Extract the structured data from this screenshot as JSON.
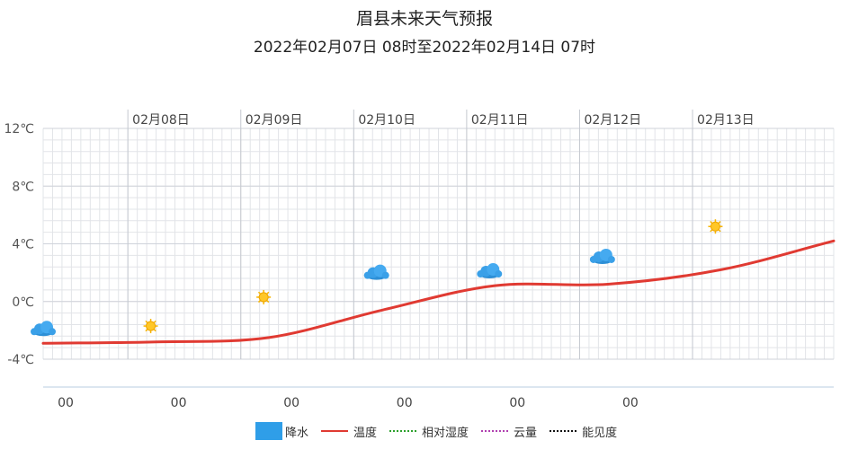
{
  "title": "眉县未来天气预报",
  "subtitle": "2022年02月07日 08时至2022年02月14日 07时",
  "chart_data": {
    "type": "line",
    "ylim": [
      -4,
      12
    ],
    "y_ticks": [
      "12℃",
      "8℃",
      "4℃",
      "0℃",
      "-4℃"
    ],
    "date_labels": [
      "02月08日",
      "02月09日",
      "02月10日",
      "02月11日",
      "02月12日",
      "02月13日"
    ],
    "hour_labels": [
      "00",
      "00",
      "00",
      "00",
      "00",
      "00"
    ],
    "grid": true,
    "series": [
      {
        "name": "温度",
        "color": "#e03a32",
        "x_hours": [
          0,
          24,
          48,
          72,
          96,
          120,
          144,
          168
        ],
        "values": [
          -2.9,
          -2.8,
          -2.5,
          -0.6,
          1.1,
          1.2,
          2.2,
          4.2
        ]
      }
    ],
    "weather_icons": [
      {
        "hour": 0,
        "icon": "rain-cloud-icon",
        "value": -1.9
      },
      {
        "hour": 24,
        "icon": "sun-icon",
        "value": -1.7
      },
      {
        "hour": 48,
        "icon": "sun-icon",
        "value": 0.3
      },
      {
        "hour": 72,
        "icon": "rain-cloud-icon",
        "value": 2.0
      },
      {
        "hour": 96,
        "icon": "rain-cloud-icon",
        "value": 2.1
      },
      {
        "hour": 120,
        "icon": "rain-cloud-icon",
        "value": 3.1
      },
      {
        "hour": 144,
        "icon": "sun-icon",
        "value": 5.2
      }
    ]
  },
  "legend": [
    {
      "label": "降水",
      "kind": "box",
      "color": "#2f9ee8"
    },
    {
      "label": "温度",
      "kind": "line",
      "style": "solid",
      "color": "#e03a32"
    },
    {
      "label": "相对湿度",
      "kind": "line",
      "style": "dotted",
      "color": "#2ca02c"
    },
    {
      "label": "云量",
      "kind": "line",
      "style": "dotted",
      "color": "#b040b0"
    },
    {
      "label": "能见度",
      "kind": "line",
      "style": "dotted",
      "color": "#111111"
    }
  ]
}
